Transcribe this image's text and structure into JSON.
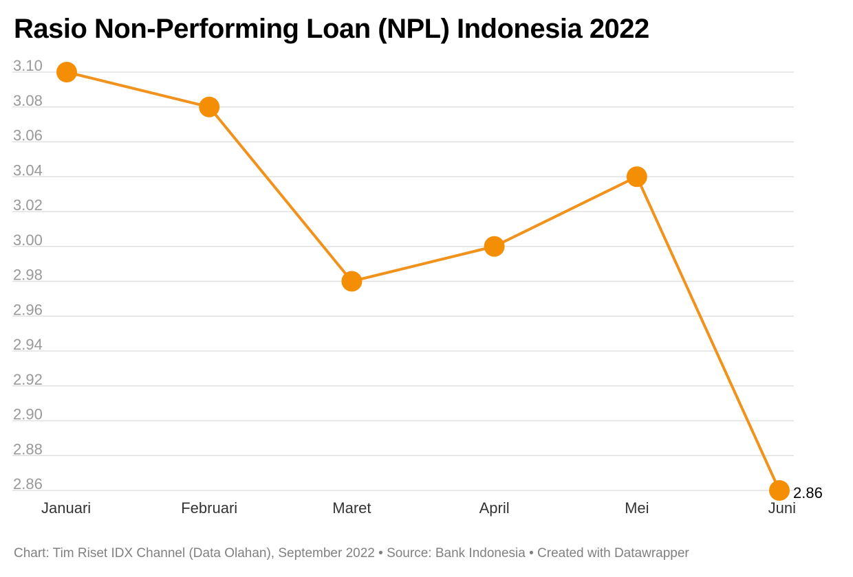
{
  "chart_data": {
    "type": "line",
    "title": "Rasio Non-Performing Loan (NPL) Indonesia 2022",
    "categories": [
      "Januari",
      "Februari",
      "Maret",
      "April",
      "Mei",
      "Juni"
    ],
    "series": [
      {
        "values": [
          3.1,
          3.08,
          2.98,
          3.0,
          3.04,
          2.86
        ]
      }
    ],
    "data_labels": [
      {
        "category": "Juni",
        "text": "2.86"
      }
    ],
    "y_ticks": [
      "3.10",
      "3.08",
      "3.06",
      "3.04",
      "3.02",
      "3.00",
      "2.98",
      "2.96",
      "2.94",
      "2.92",
      "2.90",
      "2.88",
      "2.86"
    ],
    "ylim": [
      2.86,
      3.1
    ],
    "grid": true,
    "legend": "none",
    "colors": {
      "line": "#f0921c",
      "marker": "#f38e05",
      "grid": "#e0e0e0",
      "tick_label": "#999999",
      "x_label": "#333333",
      "data_label": "#000000"
    }
  },
  "footer": {
    "text": "Chart: Tim Riset IDX Channel (Data Olahan), September 2022 • Source: Bank Indonesia • Created with Datawrapper"
  }
}
